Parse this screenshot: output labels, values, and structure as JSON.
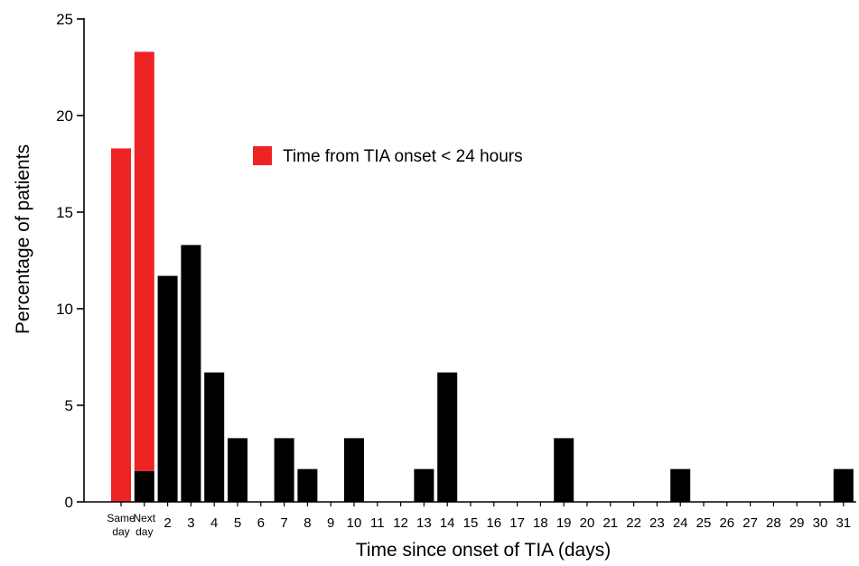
{
  "chart_data": {
    "type": "bar",
    "title": "",
    "xlabel": "Time since onset of TIA (days)",
    "ylabel": "Percentage of patients",
    "ylim": [
      0,
      25
    ],
    "yticks": [
      0,
      5,
      10,
      15,
      20,
      25
    ],
    "categories": [
      [
        "Same",
        "day"
      ],
      [
        "Next",
        "day"
      ],
      "2",
      "3",
      "4",
      "5",
      "6",
      "7",
      "8",
      "9",
      "10",
      "11",
      "12",
      "13",
      "14",
      "15",
      "16",
      "17",
      "18",
      "19",
      "20",
      "21",
      "22",
      "23",
      "24",
      "25",
      "26",
      "27",
      "28",
      "29",
      "30",
      "31"
    ],
    "series": [
      {
        "name": "Time from TIA onset < 24 hours",
        "color": "#ee2424",
        "values": [
          18.3,
          21.7,
          0,
          0,
          0,
          0,
          0,
          0,
          0,
          0,
          0,
          0,
          0,
          0,
          0,
          0,
          0,
          0,
          0,
          0,
          0,
          0,
          0,
          0,
          0,
          0,
          0,
          0,
          0,
          0,
          0,
          0
        ]
      },
      {
        "name": "",
        "color": "#000000",
        "values": [
          0,
          1.6,
          11.7,
          13.3,
          6.7,
          3.3,
          0,
          3.3,
          1.7,
          0,
          3.3,
          0,
          0,
          1.7,
          6.7,
          0,
          0,
          0,
          0,
          3.3,
          0,
          0,
          0,
          0,
          1.7,
          0,
          0,
          0,
          0,
          0,
          0,
          1.7
        ]
      }
    ],
    "stacked": true,
    "legend": {
      "position": "top-center",
      "entries": [
        {
          "label": "Time from TIA onset < 24 hours",
          "color": "#ee2424"
        }
      ]
    },
    "grid": false
  }
}
